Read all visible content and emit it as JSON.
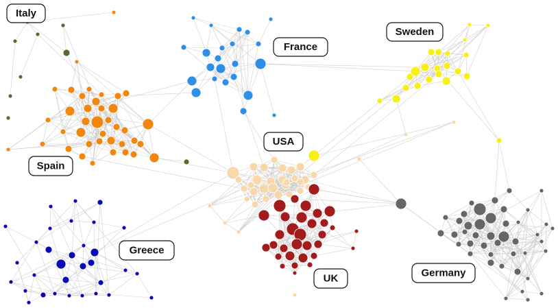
{
  "diagram": {
    "type": "network",
    "edge_color": "#c8c8c8",
    "communities": [
      {
        "id": "italy",
        "label": "Italy",
        "color": "#556b2f"
      },
      {
        "id": "france",
        "label": "France",
        "color": "#2e8fe8"
      },
      {
        "id": "sweden",
        "label": "Sweden",
        "color": "#f7ef16"
      },
      {
        "id": "spain",
        "label": "Spain",
        "color": "#f2870f"
      },
      {
        "id": "usa",
        "label": "USA",
        "color": "#f8d7aa"
      },
      {
        "id": "greece",
        "label": "Greece",
        "color": "#0a0ab4"
      },
      {
        "id": "uk",
        "label": "UK",
        "color": "#a31c1c"
      },
      {
        "id": "germany",
        "label": "Germany",
        "color": "#666666"
      }
    ]
  }
}
